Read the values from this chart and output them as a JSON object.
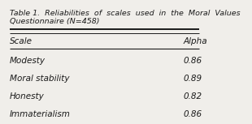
{
  "title": "Table 1.  Reliabilities  of  scales  used  in  the  Moral  Values\nQuestionnaire (N=458)",
  "col_headers": [
    "Scale",
    "Alpha"
  ],
  "rows": [
    [
      "Modesty",
      "0.86"
    ],
    [
      "Moral stability",
      "0.89"
    ],
    [
      "Honesty",
      "0.82"
    ],
    [
      "Immaterialism",
      "0.86"
    ]
  ],
  "bg_color": "#f0eeea",
  "text_color": "#1a1a1a",
  "font_size": 7.5,
  "title_font_size": 6.8
}
